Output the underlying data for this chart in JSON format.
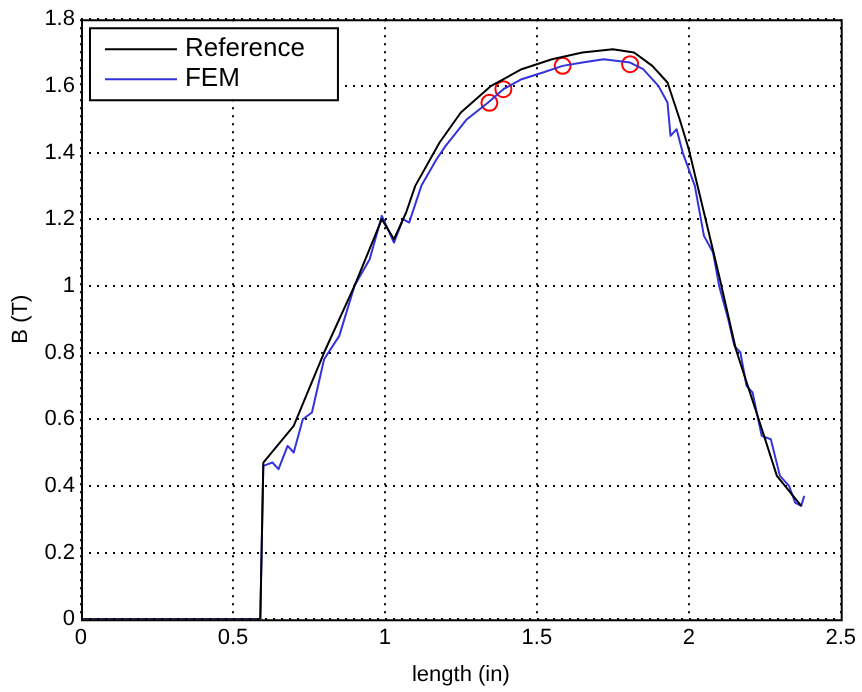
{
  "chart_data": {
    "type": "line",
    "xlabel": "length (in)",
    "ylabel": "B (T)",
    "xlim": [
      0,
      2.5
    ],
    "xticks": [
      0,
      0.5,
      1,
      1.5,
      2,
      2.5
    ],
    "ylim": [
      0,
      1.8
    ],
    "yticks": [
      0,
      0.2,
      0.4,
      0.6,
      0.8,
      1,
      1.2,
      1.4,
      1.6,
      1.8
    ],
    "grid": true,
    "legend": "top left",
    "line_style": "solid",
    "series": [
      {
        "name": "Reference",
        "color": "#000000",
        "marker": "none",
        "x": [
          0,
          0.59,
          0.6,
          0.7,
          0.8,
          0.9,
          0.99,
          1.03,
          1.07,
          1.1,
          1.18,
          1.25,
          1.35,
          1.45,
          1.55,
          1.65,
          1.75,
          1.82,
          1.88,
          1.93,
          1.97,
          2.0,
          2.05,
          2.1,
          2.155,
          2.23,
          2.29,
          2.37
        ],
        "values": [
          0,
          0,
          0.47,
          0.58,
          0.8,
          1.0,
          1.2,
          1.14,
          1.22,
          1.3,
          1.43,
          1.52,
          1.6,
          1.65,
          1.68,
          1.7,
          1.71,
          1.7,
          1.66,
          1.61,
          1.5,
          1.41,
          1.22,
          1.03,
          0.81,
          0.6,
          0.43,
          0.34
        ]
      },
      {
        "name": "FEM",
        "color": "#3333dd",
        "marker": "none",
        "x": [
          0,
          0.59,
          0.6,
          0.63,
          0.65,
          0.68,
          0.7,
          0.73,
          0.76,
          0.8,
          0.85,
          0.9,
          0.95,
          0.99,
          1.03,
          1.06,
          1.08,
          1.12,
          1.17,
          1.2,
          1.27,
          1.34,
          1.39,
          1.45,
          1.52,
          1.585,
          1.65,
          1.72,
          1.807,
          1.85,
          1.9,
          1.93,
          1.94,
          1.96,
          1.98,
          2.02,
          2.05,
          2.08,
          2.1,
          2.13,
          2.15,
          2.17,
          2.19,
          2.21,
          2.24,
          2.27,
          2.3,
          2.33,
          2.35,
          2.37,
          2.38
        ],
        "values": [
          0,
          0,
          0.46,
          0.47,
          0.45,
          0.52,
          0.5,
          0.6,
          0.62,
          0.78,
          0.85,
          1.0,
          1.08,
          1.21,
          1.13,
          1.2,
          1.19,
          1.3,
          1.38,
          1.42,
          1.5,
          1.55,
          1.59,
          1.62,
          1.64,
          1.66,
          1.67,
          1.68,
          1.67,
          1.65,
          1.6,
          1.55,
          1.45,
          1.47,
          1.4,
          1.3,
          1.15,
          1.1,
          1.0,
          0.9,
          0.82,
          0.8,
          0.7,
          0.68,
          0.55,
          0.54,
          0.43,
          0.4,
          0.35,
          0.34,
          0.37
        ]
      },
      {
        "type": "scatter",
        "color": "#ff0000",
        "marker": "circle",
        "x": [
          1.344,
          1.39,
          1.585,
          1.807
        ],
        "values": [
          1.549,
          1.59,
          1.66,
          1.665
        ]
      }
    ]
  }
}
